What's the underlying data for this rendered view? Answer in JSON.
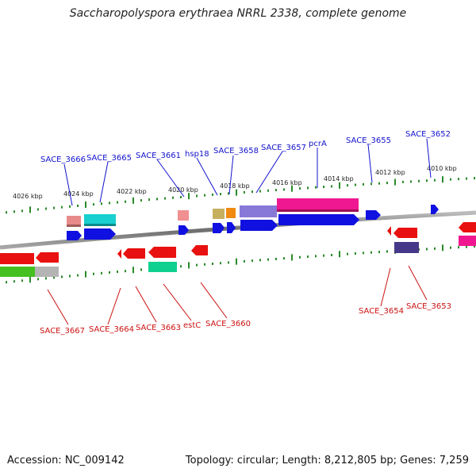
{
  "title": "Saccharopolyspora erythraea NRRL 2338, complete genome",
  "footer": {
    "accession": "Accession: NC_009142",
    "summary": "Topology: circular; Length: 8,212,805 bp; Genes: 7,259"
  },
  "colors": {
    "forward_label": "#1111cc",
    "reverse_label": "#cc1111",
    "tick": "#2a8a2a",
    "backbone": "#8a8a8a"
  },
  "ticks": [
    "4026 kbp",
    "4024 kbp",
    "4022 kbp",
    "4020 kbp",
    "4018 kbp",
    "4016 kbp",
    "4014 kbp",
    "4012 kbp",
    "4010 kbp"
  ],
  "forward_labels": [
    "SACE_3666",
    "SACE_3665",
    "SACE_3661",
    "hsp18",
    "SACE_3658",
    "SACE_3657",
    "pcrA",
    "SACE_3655",
    "SACE_3652"
  ],
  "reverse_labels": [
    "SACE_3667",
    "SACE_3664",
    "SACE_3663",
    "estC",
    "SACE_3660",
    "SACE_3654",
    "SACE_3653"
  ]
}
